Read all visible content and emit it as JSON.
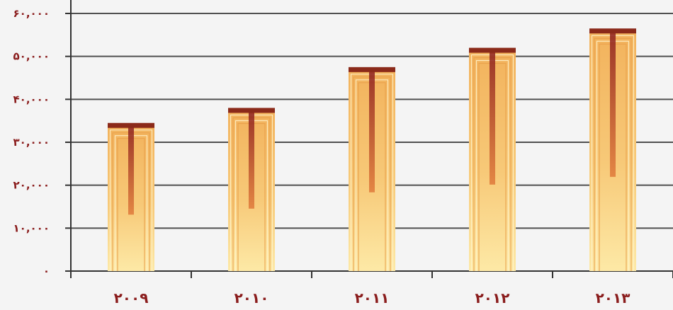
{
  "chart_data": {
    "type": "bar",
    "title": "",
    "xlabel": "",
    "ylabel": "",
    "categories": [
      "۲۰۰۹",
      "۲۰۱۰",
      "۲۰۱۱",
      "۲۰۱۲",
      "۲۰۱۳"
    ],
    "values": [
      34500,
      38000,
      47500,
      52000,
      56500
    ],
    "ylim": [
      0,
      60000
    ],
    "yticks": [
      0,
      10000,
      20000,
      30000,
      40000,
      50000,
      60000
    ],
    "ytick_labels": [
      "۰",
      "۱۰,۰۰۰",
      "۲۰,۰۰۰",
      "۳۰,۰۰۰",
      "۴۰,۰۰۰",
      "۵۰,۰۰۰",
      "۶۰,۰۰۰"
    ],
    "grid": true,
    "legend": "none",
    "colors": {
      "bar_light": "#fde9a6",
      "bar_mid": "#f2b25c",
      "bar_dark": "#8b1e1e",
      "bar_cap": "#8b2a1a",
      "gridline": "#505050",
      "label": "#8a1c1c",
      "background": "#f4f4f4"
    }
  }
}
